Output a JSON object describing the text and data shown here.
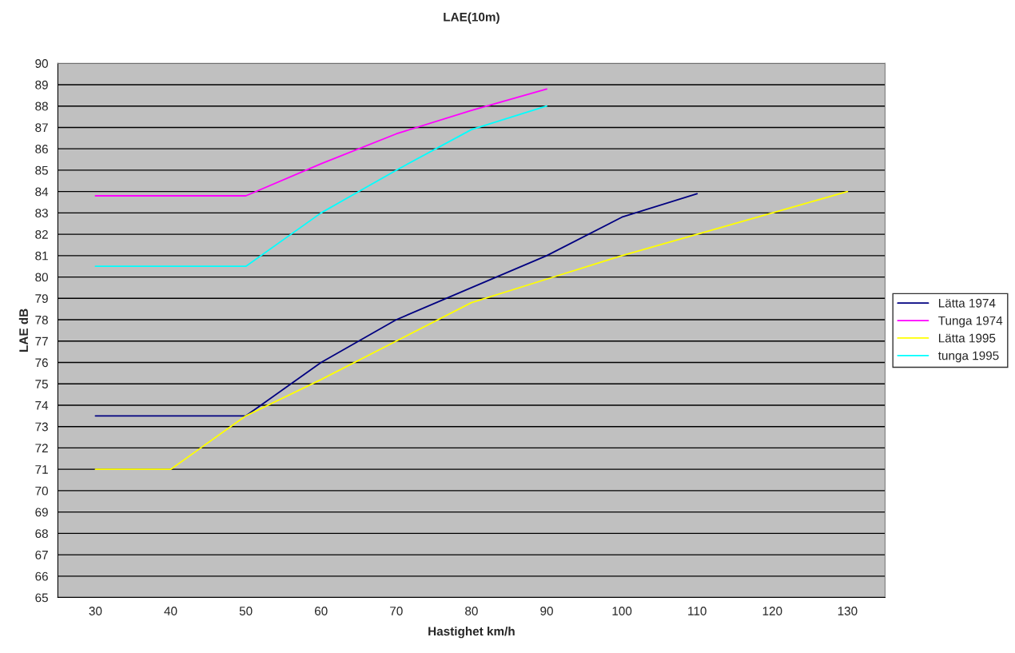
{
  "chart_data": {
    "type": "line",
    "title": "LAE(10m)",
    "xlabel": "Hastighet km/h",
    "ylabel": "LAE dB",
    "categories": [
      "30",
      "40",
      "50",
      "60",
      "70",
      "80",
      "90",
      "100",
      "110",
      "120",
      "130"
    ],
    "series": [
      {
        "name": "Lätta 1974",
        "color": "#000080",
        "values": [
          73.5,
          73.5,
          73.5,
          76,
          78,
          79.5,
          81,
          82.8,
          83.9,
          null,
          null
        ]
      },
      {
        "name": "Tunga 1974",
        "color": "#ff00ff",
        "values": [
          83.8,
          83.8,
          83.8,
          85.3,
          86.7,
          87.8,
          88.8,
          null,
          null,
          null,
          null
        ]
      },
      {
        "name": "Lätta 1995",
        "color": "#ffff00",
        "values": [
          71,
          71,
          73.5,
          75.2,
          77,
          78.8,
          79.9,
          81,
          82,
          83,
          84
        ]
      },
      {
        "name": "tunga 1995",
        "color": "#00ffff",
        "values": [
          80.5,
          80.5,
          80.5,
          83,
          85,
          86.9,
          88,
          null,
          null,
          null,
          null
        ]
      }
    ],
    "ylim": [
      65,
      90
    ],
    "yticks": [
      65,
      66,
      67,
      68,
      69,
      70,
      71,
      72,
      73,
      74,
      75,
      76,
      77,
      78,
      79,
      80,
      81,
      82,
      83,
      84,
      85,
      86,
      87,
      88,
      89,
      90
    ],
    "grid": "y",
    "legend": "right",
    "marker": "none",
    "line_style": "solid"
  }
}
